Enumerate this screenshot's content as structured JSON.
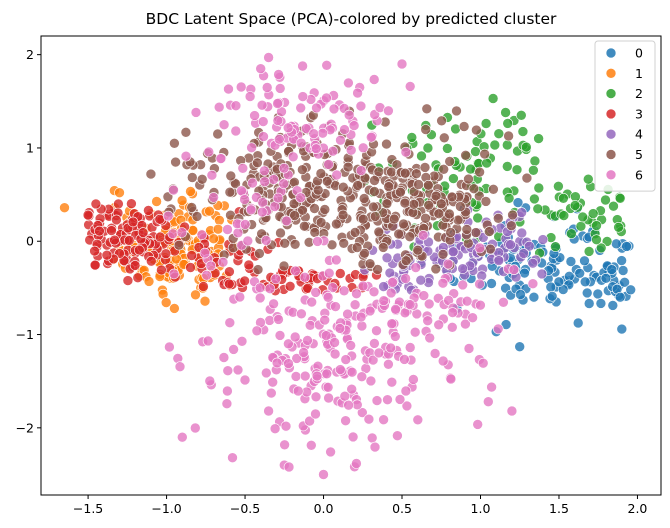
{
  "chart_data": {
    "type": "scatter",
    "title": "BDC Latent Space (PCA)-colored by predicted cluster",
    "xlabel": "",
    "ylabel": "",
    "xlim": [
      -1.8,
      2.15
    ],
    "ylim": [
      -2.72,
      2.2
    ],
    "xticks": [
      "−1.5",
      "−1.0",
      "−0.5",
      "0.0",
      "0.5",
      "1.0",
      "1.5",
      "2.0"
    ],
    "xtick_values": [
      -1.5,
      -1.0,
      -0.5,
      0.0,
      0.5,
      1.0,
      1.5,
      2.0
    ],
    "yticks": [
      "−2",
      "−1",
      "0",
      "1",
      "2"
    ],
    "ytick_values": [
      -2,
      -1,
      0,
      1,
      2
    ],
    "grid": false,
    "legend_position": "top-right",
    "legend_title": "",
    "series": [
      {
        "name": "0",
        "color": "#1f77b4",
        "count": 140,
        "seed": 11,
        "blobs": [
          {
            "cx": 1.45,
            "cy": -0.25,
            "sx": 0.28,
            "sy": 0.28,
            "w": 0.65
          },
          {
            "cx": 1.85,
            "cy": -0.35,
            "sx": 0.1,
            "sy": 0.15,
            "w": 0.2
          },
          {
            "cx": 1.0,
            "cy": -0.15,
            "sx": 0.18,
            "sy": 0.2,
            "w": 0.15
          }
        ],
        "xclip": [
          0.6,
          1.97
        ],
        "yclip": [
          -1.15,
          0.45
        ],
        "points": [
          [
            1.89,
            -0.6
          ],
          [
            1.34,
            -0.6
          ],
          [
            1.25,
            -1.13
          ],
          [
            1.1,
            -0.97
          ],
          [
            0.85,
            -0.72
          ]
        ]
      },
      {
        "name": "1",
        "color": "#ff7f0e",
        "count": 160,
        "seed": 22,
        "blobs": [
          {
            "cx": -0.95,
            "cy": -0.05,
            "sx": 0.22,
            "sy": 0.28,
            "w": 1.0
          }
        ],
        "xclip": [
          -1.35,
          -0.55
        ],
        "yclip": [
          -0.75,
          0.55
        ],
        "points": [
          [
            -1.65,
            0.36
          ],
          [
            -1.3,
            0.52
          ],
          [
            -0.95,
            -0.72
          ]
        ]
      },
      {
        "name": "2",
        "color": "#2ca02c",
        "count": 130,
        "seed": 33,
        "blobs": [
          {
            "cx": 0.8,
            "cy": 0.65,
            "sx": 0.35,
            "sy": 0.35,
            "w": 0.75
          },
          {
            "cx": 1.65,
            "cy": 0.3,
            "sx": 0.18,
            "sy": 0.2,
            "w": 0.25
          }
        ],
        "xclip": [
          0.25,
          1.95
        ],
        "yclip": [
          -0.2,
          1.35
        ],
        "points": [
          [
            1.08,
            1.53
          ],
          [
            1.16,
            1.38
          ],
          [
            1.26,
            1.35
          ],
          [
            1.37,
            1.1
          ],
          [
            1.88,
            0.15
          ]
        ]
      },
      {
        "name": "3",
        "color": "#d62728",
        "count": 200,
        "seed": 44,
        "blobs": [
          {
            "cx": -1.25,
            "cy": 0.05,
            "sx": 0.15,
            "sy": 0.2,
            "w": 0.5
          },
          {
            "cx": -0.1,
            "cy": -0.4,
            "sx": 0.3,
            "sy": 0.1,
            "w": 0.35
          },
          {
            "cx": -0.7,
            "cy": -0.2,
            "sx": 0.2,
            "sy": 0.15,
            "w": 0.15
          }
        ],
        "xclip": [
          -1.55,
          0.35
        ],
        "yclip": [
          -0.55,
          0.42
        ],
        "points": [
          [
            -1.5,
            0.28
          ],
          [
            -1.45,
            0.4
          ],
          [
            -1.38,
            -0.15
          ]
        ]
      },
      {
        "name": "4",
        "color": "#9467bd",
        "count": 120,
        "seed": 55,
        "blobs": [
          {
            "cx": 0.6,
            "cy": -0.2,
            "sx": 0.25,
            "sy": 0.18,
            "w": 0.6
          },
          {
            "cx": 1.1,
            "cy": 0.0,
            "sx": 0.2,
            "sy": 0.2,
            "w": 0.4
          }
        ],
        "xclip": [
          0.25,
          1.55
        ],
        "yclip": [
          -0.55,
          0.35
        ],
        "points": []
      },
      {
        "name": "5",
        "color": "#8c564b",
        "count": 450,
        "seed": 66,
        "blobs": [
          {
            "cx": 0.0,
            "cy": 0.55,
            "sx": 0.45,
            "sy": 0.35,
            "w": 0.7
          },
          {
            "cx": 0.6,
            "cy": 0.25,
            "sx": 0.3,
            "sy": 0.25,
            "w": 0.3
          }
        ],
        "xclip": [
          -1.0,
          1.3
        ],
        "yclip": [
          -0.35,
          1.45
        ],
        "points": [
          [
            -0.95,
            1.05
          ],
          [
            -0.85,
            0.85
          ],
          [
            -1.1,
            0.72
          ],
          [
            -0.88,
            0.05
          ]
        ]
      },
      {
        "name": "6",
        "color": "#e377c2",
        "count": 420,
        "seed": 77,
        "blobs": [
          {
            "cx": 0.1,
            "cy": -1.2,
            "sx": 0.45,
            "sy": 0.55,
            "w": 0.55
          },
          {
            "cx": -0.15,
            "cy": 1.3,
            "sx": 0.3,
            "sy": 0.3,
            "w": 0.25
          },
          {
            "cx": -0.45,
            "cy": 0.3,
            "sx": 0.2,
            "sy": 0.5,
            "w": 0.1
          },
          {
            "cx": 0.7,
            "cy": -0.6,
            "sx": 0.3,
            "sy": 0.25,
            "w": 0.1
          }
        ],
        "xclip": [
          -1.1,
          1.4
        ],
        "yclip": [
          -2.45,
          1.95
        ],
        "points": [
          [
            -0.9,
            -2.1
          ],
          [
            -0.58,
            -2.32
          ],
          [
            -0.35,
            -1.82
          ],
          [
            -0.25,
            -2.4
          ],
          [
            -0.22,
            -2.42
          ],
          [
            0.0,
            -2.5
          ],
          [
            0.5,
            1.9
          ],
          [
            -0.35,
            1.97
          ],
          [
            1.2,
            -1.82
          ],
          [
            1.05,
            -1.72
          ],
          [
            0.95,
            -0.82
          ],
          [
            -0.4,
            1.85
          ]
        ]
      }
    ]
  }
}
